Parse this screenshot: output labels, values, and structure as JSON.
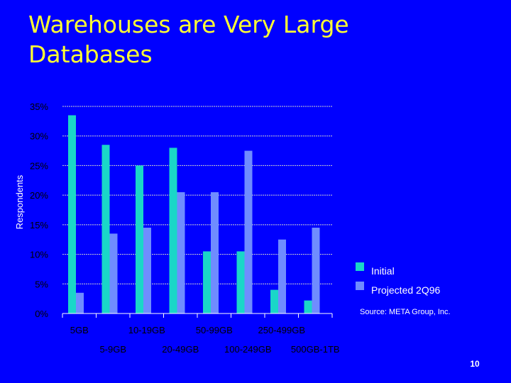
{
  "slide": {
    "title_line1": "Warehouses are Very Large",
    "title_line2": "Databases",
    "page_number": "10",
    "source": "Source: META Group, Inc.",
    "colors": {
      "background": "#0000ff",
      "title": "#ffff33",
      "initial": "#1ad6c8",
      "projected": "#6f8cff"
    }
  },
  "chart_data": {
    "type": "bar",
    "title": "",
    "xlabel": "",
    "ylabel": "Respondents",
    "ylim": [
      0,
      35
    ],
    "y_ticks": [
      "0%",
      "5%",
      "10%",
      "15%",
      "20%",
      "25%",
      "30%",
      "35%"
    ],
    "y_tick_values": [
      0,
      5,
      10,
      15,
      20,
      25,
      30,
      35
    ],
    "categories": [
      "5GB",
      "5-9GB",
      "10-19GB",
      "20-49GB",
      "50-99GB",
      "100-249GB",
      "250-499GB",
      "500GB-1TB"
    ],
    "series": [
      {
        "name": "Initial",
        "values": [
          33.5,
          28.5,
          25,
          28,
          10.5,
          10.5,
          4,
          2.2
        ]
      },
      {
        "name": "Projected 2Q96",
        "values": [
          3.5,
          13.5,
          14.5,
          20.5,
          20.5,
          27.5,
          12.5,
          14.5
        ]
      }
    ],
    "legend_position": "right",
    "grid": true
  }
}
